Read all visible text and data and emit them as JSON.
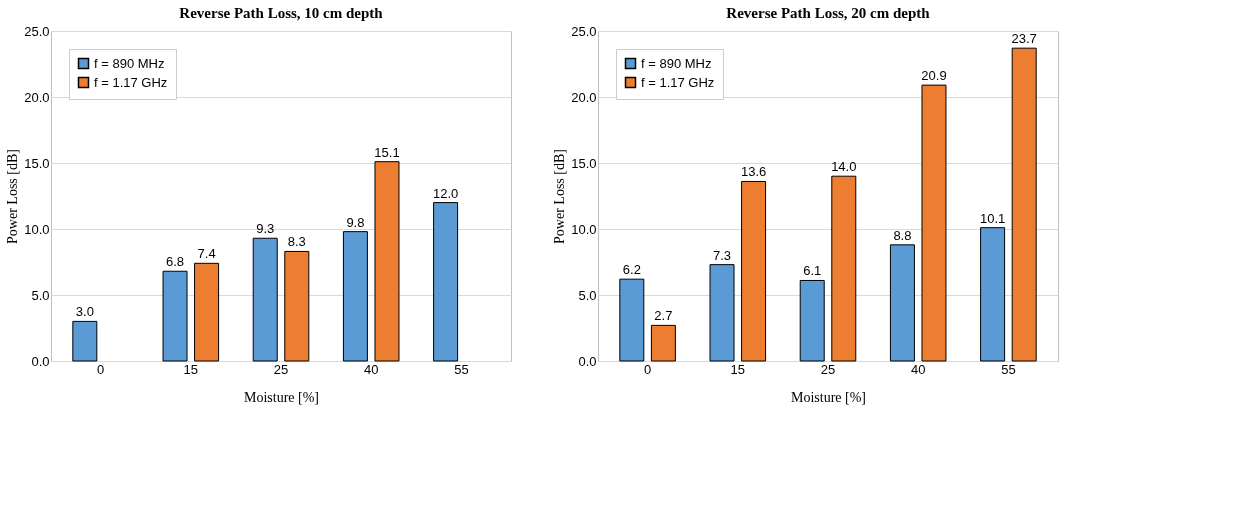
{
  "chart_data": [
    {
      "type": "bar",
      "title": "Reverse Path Loss, 10 cm depth",
      "xlabel": "Moisture [%]",
      "ylabel": "Power Loss [dB]",
      "categories": [
        "0",
        "15",
        "25",
        "40",
        "55"
      ],
      "series": [
        {
          "name": "f = 890 MHz",
          "color": "#5b9bd5",
          "values": [
            3,
            6.8,
            9.3,
            9.8,
            12
          ],
          "value_labels": [
            "3.0",
            "6.8",
            "9.3",
            "9.8",
            "12.0"
          ]
        },
        {
          "name": "f = 1.17 GHz",
          "color": "#ed7d31",
          "values": [
            null,
            7.4,
            8.3,
            15.1,
            null
          ],
          "value_labels": [
            null,
            "7.4",
            "8.3",
            "15.1",
            null
          ]
        }
      ],
      "ylim": [
        0,
        25
      ],
      "yticks": [
        {
          "value": 0,
          "label": "0.0"
        },
        {
          "value": 5,
          "label": "5.0"
        },
        {
          "value": 10,
          "label": "10.0"
        },
        {
          "value": 15,
          "label": "15.0"
        },
        {
          "value": 20,
          "label": "20.0"
        },
        {
          "value": 25,
          "label": "25.0"
        }
      ],
      "grid": "y",
      "legend": "top left"
    },
    {
      "type": "bar",
      "title": "Reverse Path Loss, 20 cm depth",
      "xlabel": "Moisture [%]",
      "ylabel": "Power Loss [dB]",
      "categories": [
        "0",
        "15",
        "25",
        "40",
        "55"
      ],
      "series": [
        {
          "name": "f = 890 MHz",
          "color": "#5b9bd5",
          "values": [
            6.2,
            7.3,
            6.1,
            8.8,
            10.1
          ],
          "value_labels": [
            "6.2",
            "7.3",
            "6.1",
            "8.8",
            "10.1"
          ]
        },
        {
          "name": "f = 1.17 GHz",
          "color": "#ed7d31",
          "values": [
            2.7,
            13.6,
            14,
            20.9,
            23.7
          ],
          "value_labels": [
            "2.7",
            "13.6",
            "14.0",
            "20.9",
            "23.7"
          ]
        }
      ],
      "ylim": [
        0,
        25
      ],
      "yticks": [
        {
          "value": 0,
          "label": "0.0"
        },
        {
          "value": 5,
          "label": "5.0"
        },
        {
          "value": 10,
          "label": "10.0"
        },
        {
          "value": 15,
          "label": "15.0"
        },
        {
          "value": 20,
          "label": "20.0"
        },
        {
          "value": 25,
          "label": "25.0"
        }
      ],
      "grid": "y",
      "legend": "top left"
    }
  ]
}
